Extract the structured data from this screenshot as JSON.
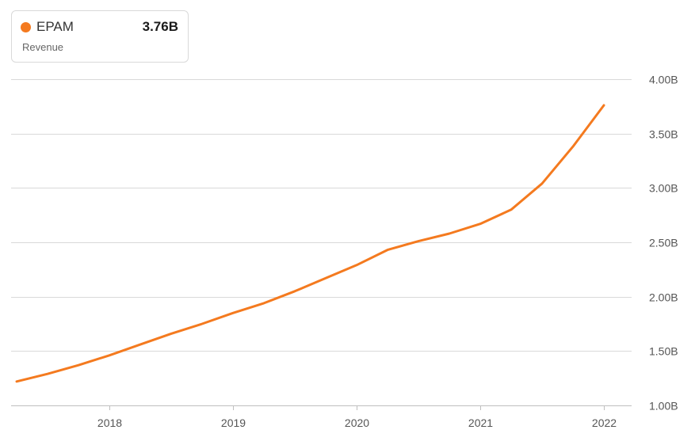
{
  "legend": {
    "ticker": "EPAM",
    "value": "3.76B",
    "metric": "Revenue"
  },
  "colors": {
    "series": "#f47a1f",
    "grid": "#d9d9d9",
    "tick_text": "#555555"
  },
  "chart_data": {
    "type": "line",
    "title": "",
    "xlabel": "",
    "ylabel": "",
    "ylim": [
      1.0,
      4.0
    ],
    "xlim": [
      2017.2,
      2022.2
    ],
    "grid": true,
    "legend_position": "top-left",
    "y_ticks": [
      {
        "value": 4.0,
        "label": "4.00B"
      },
      {
        "value": 3.5,
        "label": "3.50B"
      },
      {
        "value": 3.0,
        "label": "3.00B"
      },
      {
        "value": 2.5,
        "label": "2.50B"
      },
      {
        "value": 2.0,
        "label": "2.00B"
      },
      {
        "value": 1.5,
        "label": "1.50B"
      },
      {
        "value": 1.0,
        "label": "1.00B"
      }
    ],
    "x_ticks": [
      {
        "value": 2018,
        "label": "2018"
      },
      {
        "value": 2019,
        "label": "2019"
      },
      {
        "value": 2020,
        "label": "2020"
      },
      {
        "value": 2021,
        "label": "2021"
      },
      {
        "value": 2022,
        "label": "2022"
      }
    ],
    "series": [
      {
        "name": "EPAM",
        "points": [
          {
            "x": 2017.25,
            "y": 1.22
          },
          {
            "x": 2017.5,
            "y": 1.29
          },
          {
            "x": 2017.75,
            "y": 1.37
          },
          {
            "x": 2018.0,
            "y": 1.46
          },
          {
            "x": 2018.25,
            "y": 1.56
          },
          {
            "x": 2018.5,
            "y": 1.66
          },
          {
            "x": 2018.75,
            "y": 1.75
          },
          {
            "x": 2019.0,
            "y": 1.85
          },
          {
            "x": 2019.25,
            "y": 1.94
          },
          {
            "x": 2019.5,
            "y": 2.05
          },
          {
            "x": 2019.75,
            "y": 2.17
          },
          {
            "x": 2020.0,
            "y": 2.29
          },
          {
            "x": 2020.25,
            "y": 2.43
          },
          {
            "x": 2020.5,
            "y": 2.51
          },
          {
            "x": 2020.75,
            "y": 2.58
          },
          {
            "x": 2021.0,
            "y": 2.67
          },
          {
            "x": 2021.25,
            "y": 2.8
          },
          {
            "x": 2021.5,
            "y": 3.04
          },
          {
            "x": 2021.75,
            "y": 3.38
          },
          {
            "x": 2022.0,
            "y": 3.76
          }
        ]
      }
    ]
  }
}
